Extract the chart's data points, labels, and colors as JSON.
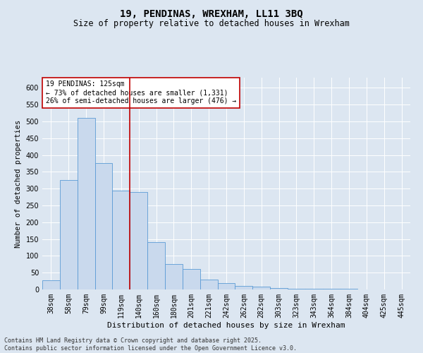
{
  "title": "19, PENDINAS, WREXHAM, LL11 3BQ",
  "subtitle": "Size of property relative to detached houses in Wrexham",
  "xlabel": "Distribution of detached houses by size in Wrexham",
  "ylabel": "Number of detached properties",
  "categories": [
    "38sqm",
    "58sqm",
    "79sqm",
    "99sqm",
    "119sqm",
    "140sqm",
    "160sqm",
    "180sqm",
    "201sqm",
    "221sqm",
    "242sqm",
    "262sqm",
    "282sqm",
    "303sqm",
    "323sqm",
    "343sqm",
    "364sqm",
    "384sqm",
    "404sqm",
    "425sqm",
    "445sqm"
  ],
  "values": [
    28,
    325,
    510,
    375,
    295,
    290,
    140,
    75,
    60,
    30,
    18,
    10,
    8,
    5,
    3,
    3,
    2,
    2,
    1,
    1,
    1
  ],
  "bar_color": "#c9d9ed",
  "bar_edge_color": "#5b9bd5",
  "vline_x": 4.5,
  "vline_color": "#c00000",
  "annotation_text": "19 PENDINAS: 125sqm\n← 73% of detached houses are smaller (1,331)\n26% of semi-detached houses are larger (476) →",
  "annotation_box_color": "#ffffff",
  "annotation_box_edge": "#c00000",
  "ylim": [
    0,
    630
  ],
  "yticks": [
    0,
    50,
    100,
    150,
    200,
    250,
    300,
    350,
    400,
    450,
    500,
    550,
    600
  ],
  "background_color": "#dce6f1",
  "plot_bg_color": "#dce6f1",
  "grid_color": "#ffffff",
  "footer": "Contains HM Land Registry data © Crown copyright and database right 2025.\nContains public sector information licensed under the Open Government Licence v3.0.",
  "title_fontsize": 10,
  "subtitle_fontsize": 8.5,
  "xlabel_fontsize": 8,
  "ylabel_fontsize": 7.5,
  "tick_fontsize": 7,
  "annotation_fontsize": 7,
  "footer_fontsize": 6
}
